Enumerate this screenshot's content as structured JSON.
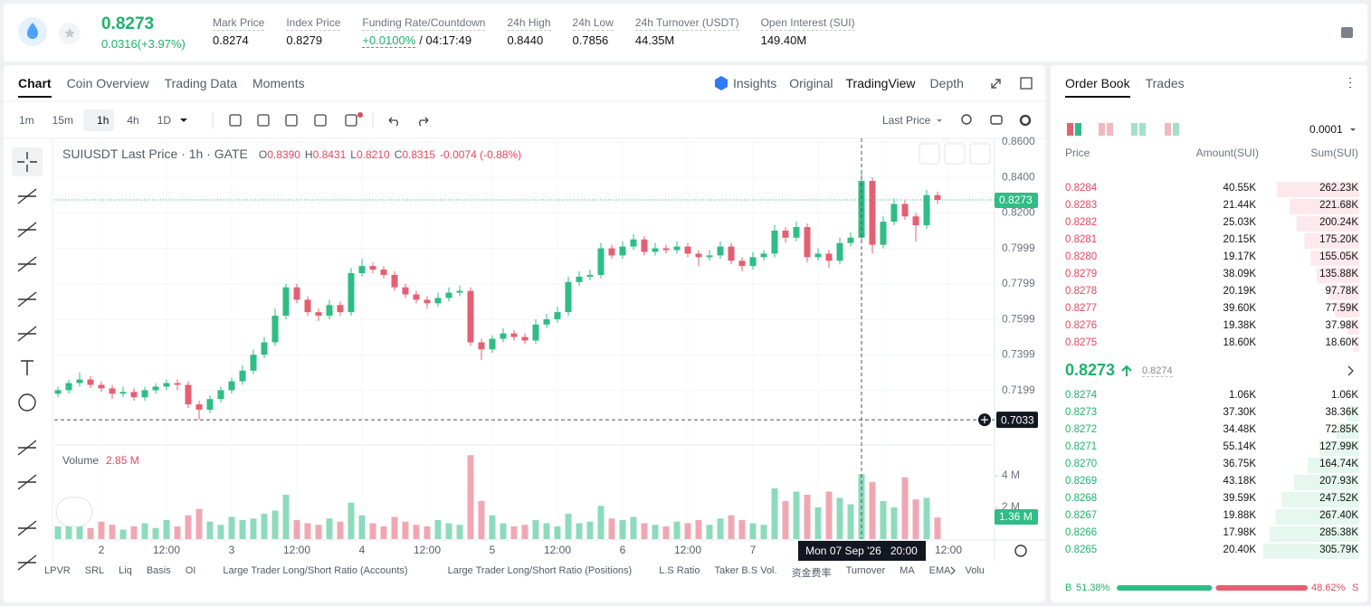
{
  "header": {
    "price": "0.8273",
    "change": "0.0316(+3.97%)",
    "stats": [
      {
        "label": "Mark Price",
        "value": "0.8274"
      },
      {
        "label": "Index Price",
        "value": "0.8279"
      },
      {
        "label": "Funding Rate/Countdown",
        "value": "+0.0100%",
        "extra": "/ 04:17:49"
      },
      {
        "label": "24h High",
        "value": "0.8440"
      },
      {
        "label": "24h Low",
        "value": "0.7856"
      },
      {
        "label": "24h Turnover (USDT)",
        "value": "44.35M"
      },
      {
        "label": "Open Interest (SUI)",
        "value": "149.40M"
      }
    ]
  },
  "chart_panel": {
    "tabs": [
      "Chart",
      "Coin Overview",
      "Trading Data",
      "Moments"
    ],
    "views": [
      "Insights",
      "Original",
      "TradingView",
      "Depth"
    ],
    "intervals": [
      "1m",
      "15m",
      "1h",
      "4h",
      "1D"
    ],
    "price_source": "Last Price",
    "indicators": [
      "LPVR",
      "SRL",
      "Liq",
      "Basis",
      "OI",
      "Large Trader Long/Short Ratio (Accounts)",
      "Large Trader Long/Short Ratio (Positions)",
      "L.S Ratio",
      "Taker B.S Vol.",
      "资金费率",
      "Turnover",
      "MA",
      "EMA",
      "Volu"
    ]
  },
  "chart_data": {
    "type": "candlestick",
    "title": "SUIUSDT Last Price · 1h · GATE",
    "readout": [
      {
        "key": "O",
        "value": "0.8390"
      },
      {
        "key": "H",
        "value": "0.8431"
      },
      {
        "key": "L",
        "value": "0.8210"
      },
      {
        "key": "C",
        "value": "0.8315"
      }
    ],
    "readout_change": "-0.0074 (-0.88%)",
    "x_labels": [
      "2",
      "12:00",
      "3",
      "12:00",
      "4",
      "12:00",
      "5",
      "12:00",
      "6",
      "12:00",
      "7",
      null,
      null,
      "12:00"
    ],
    "crosshair_label": "Mon 07 Sep '26   20:00",
    "up_color": "#2ebd85",
    "down_color": "#e55f72",
    "ylim": [
      0.6901,
      0.862
    ],
    "yticks": [
      {
        "value": 0.86,
        "label": "0.8600"
      },
      {
        "value": 0.84,
        "label": "0.8400"
      },
      {
        "value": 0.82,
        "label": "0.8200"
      },
      {
        "value": 0.7999,
        "label": "0.7999"
      },
      {
        "value": 0.7799,
        "label": "0.7799"
      },
      {
        "value": 0.7599,
        "label": "0.7599"
      },
      {
        "value": 0.7399,
        "label": "0.7399"
      },
      {
        "value": 0.7199,
        "label": "0.7199"
      }
    ],
    "last_price": {
      "value": 0.8273,
      "label": "0.8273"
    },
    "crosshair_price": {
      "value": 0.7033,
      "label": "0.7033"
    },
    "candles": [
      [
        0.718,
        0.722,
        0.716,
        0.72
      ],
      [
        0.72,
        0.726,
        0.718,
        0.724
      ],
      [
        0.724,
        0.73,
        0.722,
        0.726
      ],
      [
        0.726,
        0.728,
        0.721,
        0.723
      ],
      [
        0.723,
        0.725,
        0.719,
        0.721
      ],
      [
        0.721,
        0.723,
        0.715,
        0.718
      ],
      [
        0.718,
        0.722,
        0.716,
        0.719
      ],
      [
        0.719,
        0.721,
        0.714,
        0.716
      ],
      [
        0.716,
        0.722,
        0.714,
        0.72
      ],
      [
        0.72,
        0.724,
        0.718,
        0.722
      ],
      [
        0.722,
        0.726,
        0.72,
        0.724
      ],
      [
        0.724,
        0.726,
        0.72,
        0.723
      ],
      [
        0.723,
        0.725,
        0.71,
        0.712
      ],
      [
        0.712,
        0.714,
        0.7033,
        0.709
      ],
      [
        0.709,
        0.717,
        0.707,
        0.715
      ],
      [
        0.715,
        0.722,
        0.713,
        0.72
      ],
      [
        0.72,
        0.727,
        0.718,
        0.725
      ],
      [
        0.725,
        0.734,
        0.723,
        0.731
      ],
      [
        0.731,
        0.743,
        0.729,
        0.74
      ],
      [
        0.74,
        0.75,
        0.738,
        0.747
      ],
      [
        0.747,
        0.766,
        0.745,
        0.762
      ],
      [
        0.762,
        0.78,
        0.76,
        0.778
      ],
      [
        0.778,
        0.78,
        0.769,
        0.771
      ],
      [
        0.771,
        0.773,
        0.762,
        0.764
      ],
      [
        0.764,
        0.766,
        0.759,
        0.762
      ],
      [
        0.762,
        0.771,
        0.76,
        0.768
      ],
      [
        0.768,
        0.77,
        0.762,
        0.764
      ],
      [
        0.764,
        0.789,
        0.762,
        0.786
      ],
      [
        0.786,
        0.794,
        0.784,
        0.79
      ],
      [
        0.79,
        0.792,
        0.786,
        0.788
      ],
      [
        0.788,
        0.79,
        0.783,
        0.785
      ],
      [
        0.785,
        0.787,
        0.776,
        0.778
      ],
      [
        0.778,
        0.78,
        0.772,
        0.774
      ],
      [
        0.774,
        0.776,
        0.769,
        0.771
      ],
      [
        0.771,
        0.773,
        0.766,
        0.769
      ],
      [
        0.769,
        0.775,
        0.767,
        0.772
      ],
      [
        0.772,
        0.778,
        0.77,
        0.775
      ],
      [
        0.775,
        0.779,
        0.773,
        0.776
      ],
      [
        0.776,
        0.778,
        0.745,
        0.747
      ],
      [
        0.747,
        0.749,
        0.737,
        0.743
      ],
      [
        0.743,
        0.751,
        0.741,
        0.749
      ],
      [
        0.749,
        0.755,
        0.747,
        0.752
      ],
      [
        0.752,
        0.754,
        0.748,
        0.75
      ],
      [
        0.75,
        0.752,
        0.746,
        0.748
      ],
      [
        0.748,
        0.76,
        0.746,
        0.757
      ],
      [
        0.757,
        0.763,
        0.755,
        0.76
      ],
      [
        0.76,
        0.767,
        0.758,
        0.764
      ],
      [
        0.764,
        0.784,
        0.762,
        0.781
      ],
      [
        0.781,
        0.787,
        0.779,
        0.784
      ],
      [
        0.784,
        0.788,
        0.782,
        0.785
      ],
      [
        0.785,
        0.803,
        0.783,
        0.8
      ],
      [
        0.8,
        0.802,
        0.794,
        0.796
      ],
      [
        0.796,
        0.804,
        0.794,
        0.801
      ],
      [
        0.801,
        0.808,
        0.799,
        0.805
      ],
      [
        0.805,
        0.807,
        0.796,
        0.798
      ],
      [
        0.798,
        0.803,
        0.796,
        0.8
      ],
      [
        0.8,
        0.802,
        0.797,
        0.799
      ],
      [
        0.799,
        0.804,
        0.797,
        0.801
      ],
      [
        0.801,
        0.803,
        0.795,
        0.797
      ],
      [
        0.797,
        0.799,
        0.79,
        0.795
      ],
      [
        0.795,
        0.799,
        0.793,
        0.796
      ],
      [
        0.796,
        0.804,
        0.794,
        0.801
      ],
      [
        0.801,
        0.803,
        0.791,
        0.793
      ],
      [
        0.793,
        0.795,
        0.787,
        0.79
      ],
      [
        0.79,
        0.798,
        0.788,
        0.795
      ],
      [
        0.795,
        0.799,
        0.793,
        0.797
      ],
      [
        0.797,
        0.813,
        0.795,
        0.81
      ],
      [
        0.81,
        0.812,
        0.803,
        0.806
      ],
      [
        0.806,
        0.815,
        0.804,
        0.812
      ],
      [
        0.812,
        0.814,
        0.792,
        0.795
      ],
      [
        0.795,
        0.8,
        0.793,
        0.797
      ],
      [
        0.797,
        0.799,
        0.789,
        0.793
      ],
      [
        0.793,
        0.806,
        0.791,
        0.803
      ],
      [
        0.803,
        0.809,
        0.801,
        0.806
      ],
      [
        0.806,
        0.844,
        0.804,
        0.838
      ],
      [
        0.838,
        0.84,
        0.797,
        0.802
      ],
      [
        0.802,
        0.818,
        0.8,
        0.815
      ],
      [
        0.815,
        0.828,
        0.813,
        0.825
      ],
      [
        0.825,
        0.827,
        0.816,
        0.818
      ],
      [
        0.818,
        0.82,
        0.804,
        0.813
      ],
      [
        0.813,
        0.833,
        0.811,
        0.83
      ],
      [
        0.83,
        0.832,
        0.825,
        0.8273
      ]
    ],
    "volume": {
      "title": "Volume",
      "readout": "2.85 M",
      "ylim": [
        0,
        6
      ],
      "yticks": [
        {
          "value": 4,
          "label": "4 M"
        },
        {
          "value": 2,
          "label": "2 M"
        }
      ],
      "last_label": "1.36 M",
      "values": [
        0.8,
        0.9,
        1.2,
        0.7,
        1.1,
        0.9,
        0.6,
        0.8,
        1.0,
        0.7,
        1.2,
        0.8,
        1.5,
        1.9,
        1.1,
        0.9,
        1.4,
        1.2,
        1.3,
        1.6,
        1.8,
        2.8,
        1.2,
        1.0,
        0.9,
        1.3,
        1.1,
        2.3,
        1.5,
        1.0,
        0.8,
        1.4,
        1.1,
        0.9,
        0.8,
        1.2,
        1.0,
        0.9,
        5.3,
        2.4,
        1.5,
        1.0,
        0.8,
        0.9,
        1.2,
        1.0,
        0.8,
        1.6,
        1.0,
        1.1,
        2.1,
        1.3,
        1.2,
        1.4,
        1.0,
        0.9,
        0.8,
        1.1,
        1.0,
        1.2,
        0.9,
        1.3,
        1.5,
        1.2,
        1.0,
        0.9,
        3.2,
        2.4,
        3.0,
        2.8,
        2.0,
        3.0,
        2.6,
        2.2,
        4.1,
        3.6,
        2.4,
        2.0,
        3.9,
        2.5,
        2.6,
        1.36
      ]
    }
  },
  "order_book": {
    "tabs": [
      "Order Book",
      "Trades"
    ],
    "precision": "0.0001",
    "columns": [
      "Price",
      "Amount(SUI)",
      "Sum(SUI)"
    ],
    "asks": {
      "prices": [
        "0.8284",
        "0.8283",
        "0.8282",
        "0.8281",
        "0.8280",
        "0.8279",
        "0.8278",
        "0.8277",
        "0.8276",
        "0.8275"
      ],
      "amounts": [
        "40.55K",
        "21.44K",
        "25.03K",
        "20.15K",
        "19.17K",
        "38.09K",
        "20.19K",
        "39.60K",
        "19.38K",
        "18.60K"
      ],
      "sums": [
        262.23,
        221.68,
        200.24,
        175.2,
        155.05,
        135.88,
        97.78,
        77.59,
        37.98,
        18.6
      ],
      "sum_labels": [
        "262.23K",
        "221.68K",
        "200.24K",
        "175.20K",
        "155.05K",
        "135.88K",
        "97.78K",
        "77.59K",
        "37.98K",
        "18.60K"
      ]
    },
    "last_price": "0.8273",
    "mark_price": "0.8274",
    "bids": {
      "prices": [
        "0.8274",
        "0.8273",
        "0.8272",
        "0.8271",
        "0.8270",
        "0.8269",
        "0.8268",
        "0.8267",
        "0.8266",
        "0.8265"
      ],
      "amounts": [
        "1.06K",
        "37.30K",
        "34.48K",
        "55.14K",
        "36.75K",
        "43.18K",
        "39.59K",
        "19.88K",
        "17.98K",
        "20.40K"
      ],
      "sums": [
        1.06,
        38.36,
        72.85,
        127.99,
        164.74,
        207.93,
        247.52,
        267.4,
        285.38,
        305.79
      ],
      "sum_labels": [
        "1.06K",
        "38.36K",
        "72.85K",
        "127.99K",
        "164.74K",
        "207.93K",
        "247.52K",
        "267.40K",
        "285.38K",
        "305.79K"
      ]
    },
    "ratio": {
      "buy_key": "B",
      "buy": 51.38,
      "buy_label": "51.38%",
      "sell": 48.62,
      "sell_label": "48.62%",
      "sell_key": "S"
    }
  }
}
